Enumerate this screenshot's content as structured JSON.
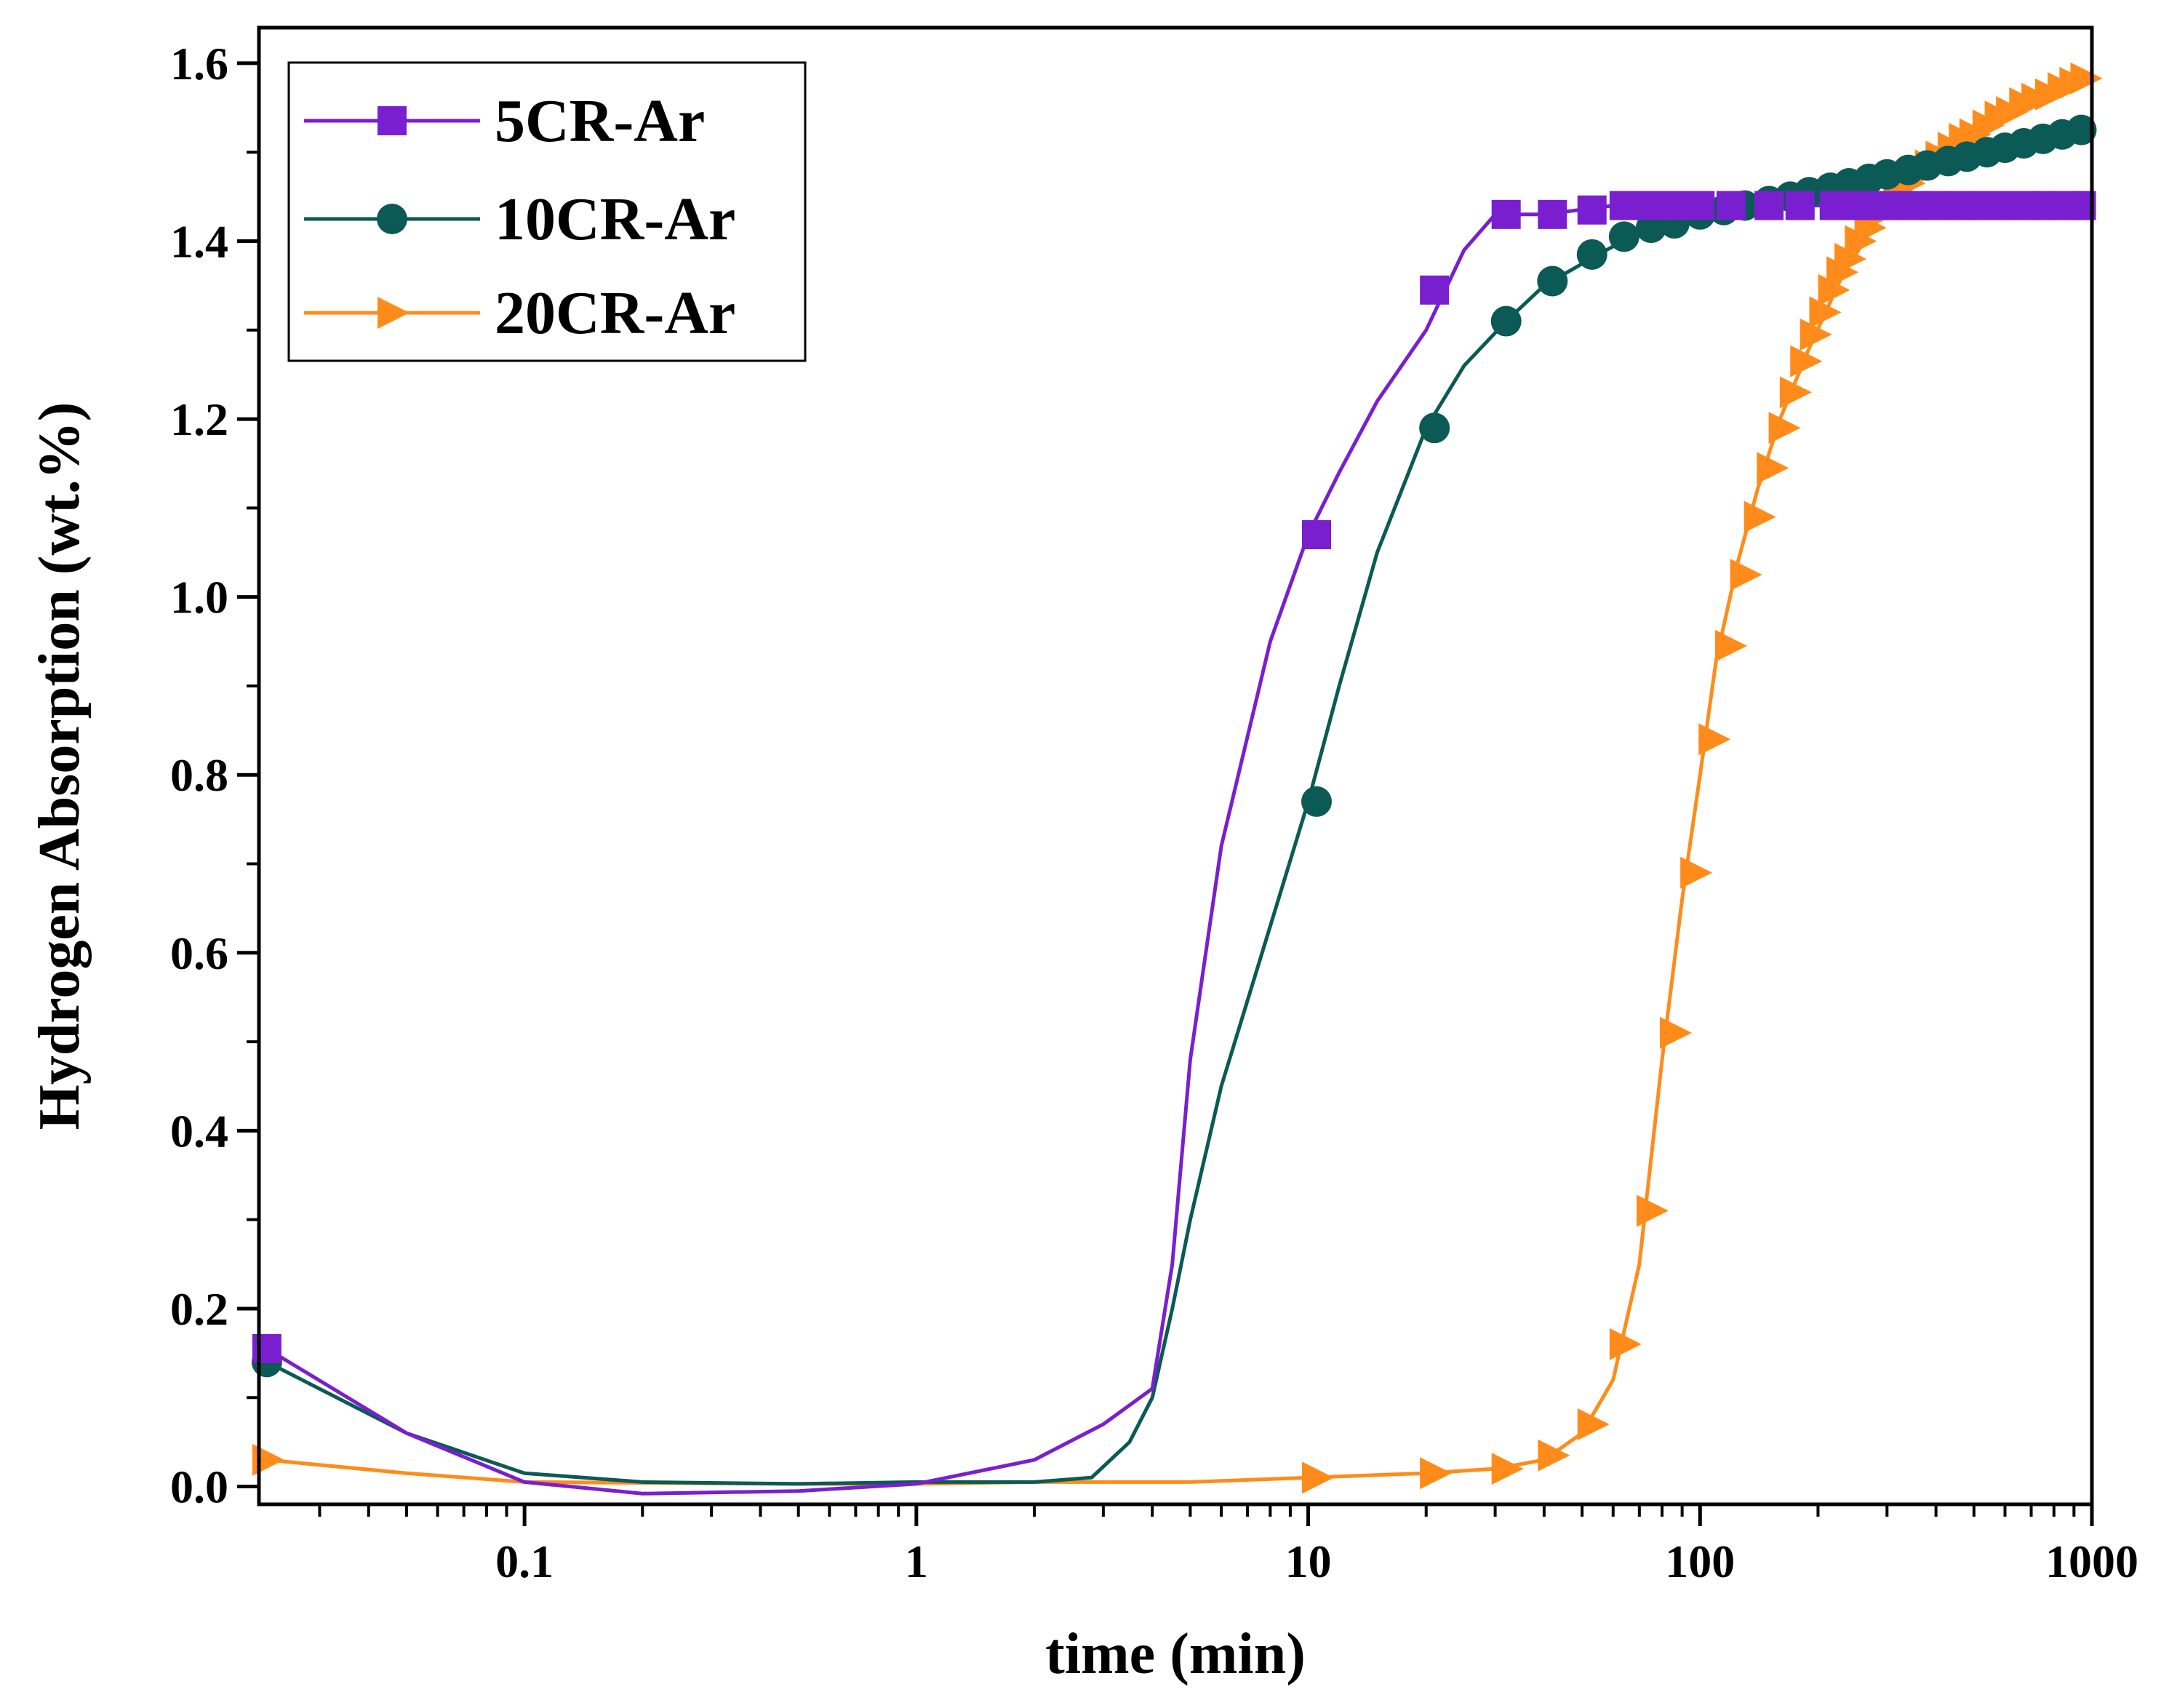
{
  "chart_data": {
    "type": "line",
    "title": "",
    "xlabel": "time (min)",
    "ylabel": "Hydrogen Absorption (wt.%)",
    "xscale": "log",
    "xlim": [
      0.021,
      1000
    ],
    "ylim": [
      -0.02,
      1.64
    ],
    "x_ticks": [
      0.1,
      1,
      10,
      100,
      1000
    ],
    "x_tick_labels": [
      "0.1",
      "1",
      "10",
      "100",
      "1000"
    ],
    "y_ticks": [
      0.0,
      0.2,
      0.4,
      0.6,
      0.8,
      1.0,
      1.2,
      1.4,
      1.6
    ],
    "y_tick_labels": [
      "0.0",
      "0.2",
      "0.4",
      "0.6",
      "0.8",
      "1.0",
      "1.2",
      "1.4",
      "1.6"
    ],
    "grid": false,
    "legend_position": "top-left",
    "series": [
      {
        "name": "5CR-Ar",
        "color": "#7a1fd0",
        "marker": "square",
        "line": [
          [
            0.022,
            0.155
          ],
          [
            0.05,
            0.06
          ],
          [
            0.1,
            0.005
          ],
          [
            0.2,
            -0.008
          ],
          [
            0.5,
            -0.005
          ],
          [
            1,
            0.003
          ],
          [
            2,
            0.03
          ],
          [
            3,
            0.07
          ],
          [
            4,
            0.11
          ],
          [
            4.5,
            0.25
          ],
          [
            5,
            0.48
          ],
          [
            6,
            0.72
          ],
          [
            8,
            0.95
          ],
          [
            10,
            1.07
          ],
          [
            12,
            1.14
          ],
          [
            15,
            1.22
          ],
          [
            20,
            1.3
          ],
          [
            25,
            1.39
          ],
          [
            30,
            1.43
          ],
          [
            40,
            1.43
          ],
          [
            60,
            1.44
          ],
          [
            100,
            1.44
          ],
          [
            300,
            1.44
          ],
          [
            1000,
            1.44
          ]
        ],
        "markers": [
          [
            0.022,
            0.155
          ],
          [
            10.5,
            1.07
          ],
          [
            21,
            1.345
          ],
          [
            32,
            1.43
          ],
          [
            42,
            1.43
          ],
          [
            53,
            1.435
          ],
          [
            64,
            1.44
          ],
          [
            75,
            1.44
          ],
          [
            86,
            1.44
          ],
          [
            100,
            1.44
          ],
          [
            120,
            1.44
          ],
          [
            150,
            1.44
          ],
          [
            180,
            1.44
          ],
          [
            220,
            1.44
          ],
          [
            260,
            1.44
          ],
          [
            300,
            1.44
          ],
          [
            350,
            1.44
          ],
          [
            400,
            1.44
          ],
          [
            460,
            1.44
          ],
          [
            520,
            1.44
          ],
          [
            600,
            1.44
          ],
          [
            680,
            1.44
          ],
          [
            760,
            1.44
          ],
          [
            850,
            1.44
          ],
          [
            940,
            1.44
          ]
        ]
      },
      {
        "name": "10CR-Ar",
        "color": "#0b5a55",
        "marker": "circle",
        "line": [
          [
            0.022,
            0.14
          ],
          [
            0.05,
            0.06
          ],
          [
            0.1,
            0.015
          ],
          [
            0.2,
            0.005
          ],
          [
            0.5,
            0.003
          ],
          [
            1,
            0.005
          ],
          [
            2,
            0.005
          ],
          [
            2.8,
            0.01
          ],
          [
            3.5,
            0.05
          ],
          [
            4,
            0.1
          ],
          [
            4.5,
            0.2
          ],
          [
            5,
            0.3
          ],
          [
            6,
            0.45
          ],
          [
            8,
            0.63
          ],
          [
            10,
            0.77
          ],
          [
            12,
            0.9
          ],
          [
            15,
            1.05
          ],
          [
            20,
            1.19
          ],
          [
            25,
            1.26
          ],
          [
            32,
            1.31
          ],
          [
            40,
            1.35
          ],
          [
            55,
            1.385
          ],
          [
            70,
            1.41
          ],
          [
            100,
            1.43
          ],
          [
            150,
            1.445
          ],
          [
            200,
            1.46
          ],
          [
            300,
            1.475
          ],
          [
            500,
            1.495
          ],
          [
            1000,
            1.525
          ]
        ],
        "markers": [
          [
            0.022,
            0.14
          ],
          [
            10.5,
            0.77
          ],
          [
            21,
            1.19
          ],
          [
            32,
            1.31
          ],
          [
            42,
            1.355
          ],
          [
            53,
            1.385
          ],
          [
            64,
            1.405
          ],
          [
            75,
            1.415
          ],
          [
            86,
            1.42
          ],
          [
            100,
            1.43
          ],
          [
            115,
            1.435
          ],
          [
            130,
            1.44
          ],
          [
            150,
            1.445
          ],
          [
            170,
            1.45
          ],
          [
            190,
            1.455
          ],
          [
            215,
            1.46
          ],
          [
            240,
            1.465
          ],
          [
            270,
            1.47
          ],
          [
            300,
            1.475
          ],
          [
            340,
            1.48
          ],
          [
            380,
            1.485
          ],
          [
            430,
            1.49
          ],
          [
            480,
            1.495
          ],
          [
            540,
            1.5
          ],
          [
            600,
            1.505
          ],
          [
            670,
            1.51
          ],
          [
            750,
            1.515
          ],
          [
            840,
            1.52
          ],
          [
            940,
            1.525
          ]
        ]
      },
      {
        "name": "20CR-Ar",
        "color": "#ff8c1a",
        "marker": "triangle-right",
        "line": [
          [
            0.022,
            0.03
          ],
          [
            0.05,
            0.015
          ],
          [
            0.1,
            0.005
          ],
          [
            0.5,
            0.003
          ],
          [
            1,
            0.003
          ],
          [
            2,
            0.005
          ],
          [
            5,
            0.005
          ],
          [
            10,
            0.01
          ],
          [
            20,
            0.015
          ],
          [
            30,
            0.02
          ],
          [
            40,
            0.03
          ],
          [
            50,
            0.06
          ],
          [
            60,
            0.12
          ],
          [
            70,
            0.25
          ],
          [
            80,
            0.48
          ],
          [
            90,
            0.66
          ],
          [
            100,
            0.8
          ],
          [
            110,
            0.93
          ],
          [
            125,
            1.04
          ],
          [
            140,
            1.12
          ],
          [
            160,
            1.2
          ],
          [
            190,
            1.28
          ],
          [
            230,
            1.36
          ],
          [
            280,
            1.42
          ],
          [
            350,
            1.47
          ],
          [
            450,
            1.51
          ],
          [
            600,
            1.545
          ],
          [
            800,
            1.57
          ],
          [
            1000,
            1.585
          ]
        ],
        "markers": [
          [
            0.022,
            0.03
          ],
          [
            10.5,
            0.01
          ],
          [
            21,
            0.015
          ],
          [
            32,
            0.02
          ],
          [
            42,
            0.035
          ],
          [
            53,
            0.07
          ],
          [
            64,
            0.16
          ],
          [
            75,
            0.31
          ],
          [
            86,
            0.51
          ],
          [
            97,
            0.69
          ],
          [
            108,
            0.84
          ],
          [
            119,
            0.945
          ],
          [
            130,
            1.025
          ],
          [
            141,
            1.09
          ],
          [
            152,
            1.145
          ],
          [
            163,
            1.19
          ],
          [
            174,
            1.23
          ],
          [
            185,
            1.265
          ],
          [
            196,
            1.295
          ],
          [
            207,
            1.32
          ],
          [
            218,
            1.345
          ],
          [
            229,
            1.365
          ],
          [
            240,
            1.38
          ],
          [
            255,
            1.4
          ],
          [
            270,
            1.415
          ],
          [
            285,
            1.43
          ],
          [
            300,
            1.44
          ],
          [
            320,
            1.455
          ],
          [
            340,
            1.465
          ],
          [
            360,
            1.475
          ],
          [
            385,
            1.485
          ],
          [
            410,
            1.495
          ],
          [
            440,
            1.505
          ],
          [
            470,
            1.515
          ],
          [
            500,
            1.52
          ],
          [
            540,
            1.53
          ],
          [
            580,
            1.54
          ],
          [
            620,
            1.545
          ],
          [
            670,
            1.555
          ],
          [
            720,
            1.56
          ],
          [
            780,
            1.565
          ],
          [
            840,
            1.572
          ],
          [
            900,
            1.578
          ],
          [
            960,
            1.583
          ]
        ]
      }
    ]
  }
}
